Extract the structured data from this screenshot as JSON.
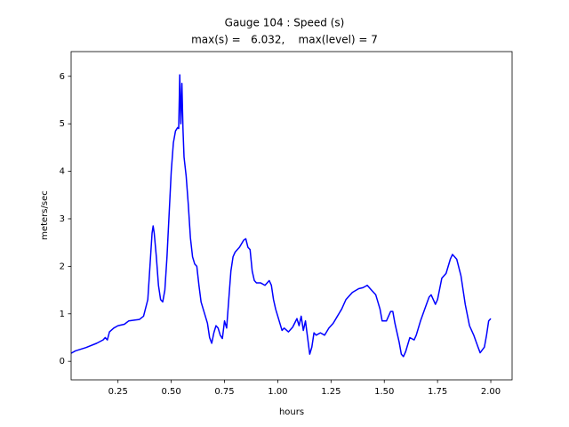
{
  "chart_data": {
    "type": "line",
    "title": "Gauge 104 : Speed (s)",
    "subtitle": "max(s) =   6.032,    max(level) = 7",
    "xlabel": "hours",
    "ylabel": "meters/sec",
    "color": "#0000ff",
    "x": [
      0.03,
      0.05,
      0.1,
      0.15,
      0.18,
      0.19,
      0.2,
      0.21,
      0.23,
      0.25,
      0.28,
      0.3,
      0.33,
      0.35,
      0.37,
      0.39,
      0.4,
      0.41,
      0.415,
      0.42,
      0.43,
      0.44,
      0.45,
      0.46,
      0.47,
      0.48,
      0.49,
      0.5,
      0.51,
      0.52,
      0.53,
      0.535,
      0.54,
      0.545,
      0.55,
      0.555,
      0.56,
      0.57,
      0.58,
      0.59,
      0.6,
      0.61,
      0.62,
      0.63,
      0.64,
      0.65,
      0.66,
      0.67,
      0.68,
      0.69,
      0.7,
      0.71,
      0.72,
      0.73,
      0.74,
      0.75,
      0.76,
      0.77,
      0.78,
      0.79,
      0.8,
      0.82,
      0.84,
      0.85,
      0.86,
      0.87,
      0.88,
      0.89,
      0.9,
      0.92,
      0.94,
      0.96,
      0.97,
      0.98,
      0.99,
      1.0,
      1.01,
      1.02,
      1.03,
      1.05,
      1.07,
      1.09,
      1.1,
      1.11,
      1.12,
      1.13,
      1.14,
      1.15,
      1.16,
      1.17,
      1.18,
      1.2,
      1.22,
      1.24,
      1.26,
      1.28,
      1.3,
      1.32,
      1.35,
      1.38,
      1.4,
      1.42,
      1.44,
      1.46,
      1.48,
      1.49,
      1.51,
      1.53,
      1.54,
      1.55,
      1.57,
      1.58,
      1.59,
      1.6,
      1.62,
      1.64,
      1.65,
      1.67,
      1.69,
      1.71,
      1.72,
      1.74,
      1.75,
      1.77,
      1.79,
      1.81,
      1.82,
      1.84,
      1.86,
      1.88,
      1.9,
      1.92,
      1.94,
      1.95,
      1.97,
      1.98,
      1.99,
      2.0
    ],
    "values": [
      0.17,
      0.22,
      0.29,
      0.38,
      0.45,
      0.5,
      0.45,
      0.62,
      0.7,
      0.75,
      0.78,
      0.85,
      0.87,
      0.88,
      0.95,
      1.3,
      2.0,
      2.7,
      2.85,
      2.7,
      2.2,
      1.6,
      1.3,
      1.25,
      1.5,
      2.2,
      3.1,
      4.0,
      4.6,
      4.85,
      4.92,
      4.9,
      6.03,
      5.0,
      5.85,
      4.9,
      4.3,
      3.9,
      3.3,
      2.6,
      2.2,
      2.05,
      2.0,
      1.6,
      1.25,
      1.1,
      0.95,
      0.8,
      0.5,
      0.38,
      0.6,
      0.75,
      0.7,
      0.55,
      0.48,
      0.85,
      0.7,
      1.3,
      1.9,
      2.2,
      2.3,
      2.4,
      2.55,
      2.58,
      2.4,
      2.35,
      1.9,
      1.7,
      1.65,
      1.65,
      1.6,
      1.7,
      1.6,
      1.3,
      1.1,
      0.95,
      0.8,
      0.65,
      0.7,
      0.62,
      0.72,
      0.9,
      0.75,
      0.95,
      0.65,
      0.85,
      0.5,
      0.15,
      0.3,
      0.6,
      0.55,
      0.6,
      0.55,
      0.7,
      0.8,
      0.95,
      1.1,
      1.3,
      1.45,
      1.53,
      1.55,
      1.6,
      1.5,
      1.4,
      1.1,
      0.85,
      0.85,
      1.05,
      1.05,
      0.8,
      0.4,
      0.15,
      0.1,
      0.2,
      0.5,
      0.45,
      0.55,
      0.85,
      1.1,
      1.35,
      1.4,
      1.2,
      1.3,
      1.75,
      1.85,
      2.15,
      2.25,
      2.15,
      1.8,
      1.2,
      0.75,
      0.55,
      0.3,
      0.18,
      0.3,
      0.55,
      0.85,
      0.9
    ],
    "xlim": [
      0.03,
      2.1
    ],
    "ylim": [
      -0.39,
      6.52
    ],
    "xticks": [
      0.25,
      {
        "value": 0.5,
        "label": "0.50"
      },
      0.75,
      {
        "value": 1.0,
        "label": "1.00"
      },
      1.25,
      {
        "value": 1.5,
        "label": "1.50"
      },
      1.75,
      {
        "value": 2.0,
        "label": "2.00"
      }
    ],
    "yticks": [
      0,
      1,
      2,
      3,
      4,
      5,
      6
    ]
  }
}
